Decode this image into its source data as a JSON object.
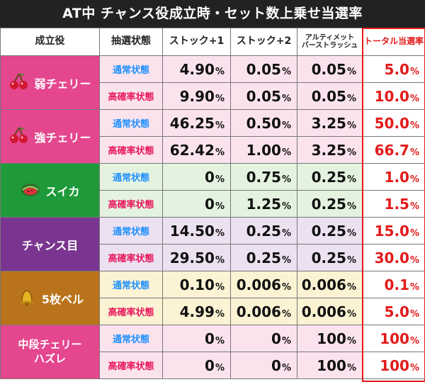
{
  "title": "AT中 チャンス役成立時・セット数上乗せ当選率",
  "headers": {
    "role": "成立役",
    "state": "抽選状態",
    "stock1": "ストック+1",
    "stock2": "ストック+2",
    "ultimate": "アルティメット\nバーストラッシュ",
    "total": "トータル当選率"
  },
  "colors": {
    "weak_cherry": "#e4478e",
    "strong_cherry": "#e4478e",
    "watermelon": "#1f9a3a",
    "chance": "#7a3590",
    "bell": "#b9731a",
    "middle_cherry": "#e4478e",
    "total_border": "#e31a1a"
  },
  "rows": [
    {
      "group": "weak_cherry",
      "label": "弱チェリー",
      "state": "通常状態",
      "state_type": "normal",
      "s1": "4.90",
      "s2": "0.05",
      "ult": "0.05",
      "total": "5.0",
      "bg": "#fbe3ee"
    },
    {
      "group": "weak_cherry",
      "state": "高確率状態",
      "state_type": "high",
      "s1": "9.90",
      "s2": "0.05",
      "ult": "0.05",
      "total": "10.0",
      "bg": "#fbe3ee"
    },
    {
      "group": "strong_cherry",
      "label": "強チェリー",
      "state": "通常状態",
      "state_type": "normal",
      "s1": "46.25",
      "s2": "0.50",
      "ult": "3.25",
      "total": "50.0",
      "bg": "#fbe3ee"
    },
    {
      "group": "strong_cherry",
      "state": "高確率状態",
      "state_type": "high",
      "s1": "62.42",
      "s2": "1.00",
      "ult": "3.25",
      "total": "66.7",
      "bg": "#fbe3ee"
    },
    {
      "group": "watermelon",
      "label": "スイカ",
      "state": "通常状態",
      "state_type": "normal",
      "s1": "0",
      "s2": "0.75",
      "ult": "0.25",
      "total": "1.0",
      "bg": "#e4f3df"
    },
    {
      "group": "watermelon",
      "state": "高確率状態",
      "state_type": "high",
      "s1": "0",
      "s2": "1.25",
      "ult": "0.25",
      "total": "1.5",
      "bg": "#e4f3df"
    },
    {
      "group": "chance",
      "label": "チャンス目",
      "state": "通常状態",
      "state_type": "normal",
      "s1": "14.50",
      "s2": "0.25",
      "ult": "0.25",
      "total": "15.0",
      "bg": "#ece1f1"
    },
    {
      "group": "chance",
      "state": "高確率状態",
      "state_type": "high",
      "s1": "29.50",
      "s2": "0.25",
      "ult": "0.25",
      "total": "30.0",
      "bg": "#ece1f1"
    },
    {
      "group": "bell",
      "label": "5枚ベル",
      "state": "通常状態",
      "state_type": "normal",
      "s1": "0.10",
      "s2": "0.006",
      "ult": "0.006",
      "total": "0.1",
      "bg": "#fbf3d3"
    },
    {
      "group": "bell",
      "state": "高確率状態",
      "state_type": "high",
      "s1": "4.99",
      "s2": "0.006",
      "ult": "0.006",
      "total": "5.0",
      "bg": "#fbf3d3"
    },
    {
      "group": "middle_cherry",
      "label": "中段チェリー\nハズレ",
      "state": "通常状態",
      "state_type": "normal",
      "s1": "0",
      "s2": "0",
      "ult": "100",
      "total": "100",
      "bg": "#fbe3ee"
    },
    {
      "group": "middle_cherry",
      "state": "高確率状態",
      "state_type": "high",
      "s1": "0",
      "s2": "0",
      "ult": "100",
      "total": "100",
      "bg": "#fbe3ee"
    }
  ],
  "percent_sign": "%"
}
